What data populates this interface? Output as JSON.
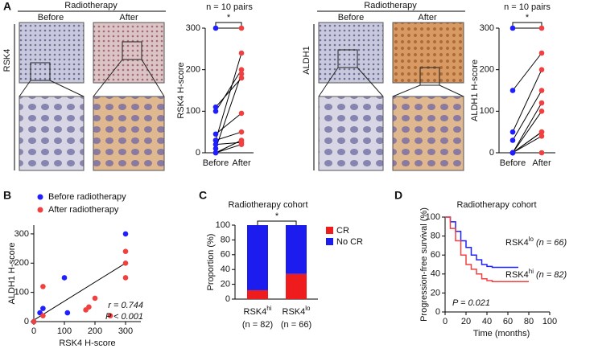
{
  "figure": {
    "panel_labels": [
      "A",
      "B",
      "C",
      "D"
    ],
    "ihc": [
      {
        "header": "Radiotherapy",
        "before": "Before",
        "after": "After",
        "marker": "RSK4"
      },
      {
        "header": "Radiotherapy",
        "before": "Before",
        "after": "After",
        "marker": "ALDH1"
      }
    ]
  },
  "chart_data": [
    {
      "type": "paired",
      "title": "n = 10 pairs",
      "significance": "*",
      "ylabel": "RSK4 H-score",
      "categories": [
        "Before",
        "After"
      ],
      "colors": [
        "#1f1fff",
        "#f04040"
      ],
      "ylim": [
        0,
        300
      ],
      "yticks": [
        0,
        100,
        200,
        300
      ],
      "series": [
        {
          "values": [
            300,
            300
          ]
        },
        {
          "values": [
            110,
            180
          ]
        },
        {
          "values": [
            100,
            200
          ]
        },
        {
          "values": [
            45,
            95
          ]
        },
        {
          "values": [
            30,
            240
          ]
        },
        {
          "values": [
            30,
            50
          ]
        },
        {
          "values": [
            20,
            25
          ]
        },
        {
          "values": [
            10,
            190
          ]
        },
        {
          "values": [
            0,
            30
          ]
        },
        {
          "values": [
            0,
            20
          ]
        }
      ]
    },
    {
      "type": "paired",
      "title": "n = 10 pairs",
      "significance": "*",
      "ylabel": "ALDH1 H-score",
      "categories": [
        "Before",
        "After"
      ],
      "colors": [
        "#1f1fff",
        "#f04040"
      ],
      "ylim": [
        0,
        300
      ],
      "yticks": [
        0,
        100,
        200,
        300
      ],
      "series": [
        {
          "values": [
            300,
            300
          ]
        },
        {
          "values": [
            150,
            240
          ]
        },
        {
          "values": [
            50,
            200
          ]
        },
        {
          "values": [
            30,
            150
          ]
        },
        {
          "values": [
            0,
            120
          ]
        },
        {
          "values": [
            0,
            100
          ]
        },
        {
          "values": [
            0,
            50
          ]
        },
        {
          "values": [
            0,
            40
          ]
        },
        {
          "values": [
            0,
            0
          ]
        },
        {
          "values": [
            0,
            50
          ]
        }
      ]
    },
    {
      "type": "scatter",
      "xlabel": "RSK4 H-score",
      "ylabel": "ALDH1 H-score",
      "stats": [
        "r = 0.744",
        "P < 0.001"
      ],
      "xlim": [
        0,
        350
      ],
      "xticks": [
        0,
        100,
        200,
        300
      ],
      "ylim": [
        0,
        330
      ],
      "yticks": [
        0,
        100,
        200,
        300
      ],
      "series": [
        {
          "name": "Before radiotherapy",
          "color": "#1f1fff",
          "x": [
            300,
            100,
            30,
            20,
            110,
            0
          ],
          "values": [
            300,
            150,
            45,
            30,
            30,
            0
          ]
        },
        {
          "name": "After radiotherapy",
          "color": "#f04040",
          "x": [
            30,
            300,
            300,
            300,
            200,
            180,
            170,
            250,
            30,
            0
          ],
          "values": [
            120,
            240,
            200,
            150,
            80,
            50,
            40,
            20,
            20,
            0
          ]
        }
      ],
      "fit": {
        "x": [
          0,
          300
        ],
        "values": [
          5,
          200
        ]
      }
    },
    {
      "type": "stacked_bar",
      "title": "Radiotherapy cohort",
      "significance": "*",
      "ylabel": "Proportion (%)",
      "categories": [
        [
          "RSK4",
          "hi"
        ],
        [
          "RSK4",
          "lo"
        ]
      ],
      "category_n": [
        "(n = 82)",
        "(n = 66)"
      ],
      "ylim": [
        0,
        100
      ],
      "yticks": [
        0,
        20,
        40,
        60,
        80,
        100
      ],
      "series": [
        {
          "name": "CR",
          "color": "#ee1c1c",
          "values": [
            12,
            34
          ]
        },
        {
          "name": "No CR",
          "color": "#1c1cee",
          "values": [
            88,
            66
          ]
        }
      ]
    },
    {
      "type": "step_line",
      "title": "Radiotherapy cohort",
      "xlabel": "Time (months)",
      "ylabel": "Progression-free survival (%)",
      "stats": [
        "P = 0.021"
      ],
      "x": [
        0,
        5,
        10,
        15,
        20,
        25,
        30,
        35,
        40,
        45,
        50,
        60,
        70,
        80
      ],
      "xlim": [
        0,
        100
      ],
      "xticks": [
        0,
        20,
        40,
        60,
        80,
        100
      ],
      "ylim": [
        0,
        100
      ],
      "yticks": [
        0,
        20,
        40,
        60,
        80,
        100
      ],
      "series": [
        {
          "name": [
            "RSK4",
            "lo"
          ],
          "n_label": "(n = 66)",
          "color": "#1f1fff",
          "values": [
            100,
            95,
            85,
            75,
            68,
            60,
            55,
            50,
            48,
            47,
            47,
            47,
            47,
            null
          ]
        },
        {
          "name": [
            "RSK4",
            "hi"
          ],
          "n_label": "(n = 82)",
          "color": "#f04040",
          "values": [
            100,
            88,
            75,
            60,
            50,
            45,
            40,
            35,
            33,
            32,
            32,
            32,
            32,
            32
          ]
        }
      ]
    }
  ]
}
